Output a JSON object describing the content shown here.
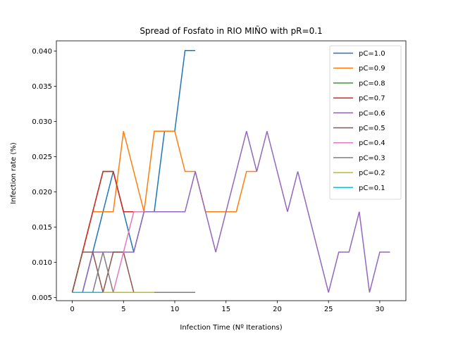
{
  "chart_data": {
    "type": "line",
    "title": "Spread of Fosfato in RIO MIÑO with pR=0.1",
    "xlabel": "Infection Time (Nº Iterations)",
    "ylabel": "Infection rate (%)",
    "xlim": [
      -1.55,
      32.55
    ],
    "ylim": [
      0.00455,
      0.04146
    ],
    "xticks": [
      0,
      5,
      10,
      15,
      20,
      25,
      30
    ],
    "yticks": [
      0.005,
      0.01,
      0.015,
      0.02,
      0.025,
      0.03,
      0.035,
      0.04
    ],
    "ytick_labels": [
      "0.005",
      "0.010",
      "0.015",
      "0.020",
      "0.025",
      "0.030",
      "0.035",
      "0.040"
    ],
    "legend_position": "top-right",
    "series": [
      {
        "name": "pC=1.0",
        "color": "#1f77b4",
        "x": [
          0,
          1,
          2,
          3,
          4,
          5,
          6,
          7,
          8,
          9,
          10,
          11,
          12
        ],
        "y": [
          0.00572,
          0.00572,
          0.01145,
          0.01718,
          0.0229,
          0.01718,
          0.01145,
          0.01718,
          0.01718,
          0.02863,
          0.02863,
          0.04008,
          0.04008
        ]
      },
      {
        "name": "pC=0.9",
        "color": "#ff7f0e",
        "x": [
          0,
          1,
          2,
          3,
          4,
          5,
          6,
          7,
          8,
          9,
          10,
          11,
          12,
          13,
          14,
          15,
          16,
          17,
          18
        ],
        "y": [
          0.00572,
          0.01145,
          0.01718,
          0.01718,
          0.01718,
          0.02863,
          0.0229,
          0.01718,
          0.02863,
          0.02863,
          0.02863,
          0.0229,
          0.0229,
          0.01718,
          0.01718,
          0.01718,
          0.01718,
          0.0229,
          0.0229
        ]
      },
      {
        "name": "pC=0.8",
        "color": "#2ca02c",
        "x": [
          0,
          1,
          2,
          3,
          4,
          5,
          6
        ],
        "y": [
          0.00572,
          0.01145,
          0.01718,
          0.0229,
          0.0229,
          0.01718,
          0.01718
        ]
      },
      {
        "name": "pC=0.7",
        "color": "#d62728",
        "x": [
          0,
          1,
          2,
          3,
          4,
          5,
          6
        ],
        "y": [
          0.00572,
          0.01145,
          0.01718,
          0.0229,
          0.0229,
          0.01718,
          0.01718
        ]
      },
      {
        "name": "pC=0.6",
        "color": "#9467bd",
        "x": [
          0,
          1,
          2,
          3,
          4,
          5,
          6,
          7,
          8,
          9,
          10,
          11,
          12,
          13,
          14,
          15,
          16,
          17,
          18,
          19,
          20,
          21,
          22,
          23,
          24,
          25,
          26,
          27,
          28,
          29,
          30,
          31
        ],
        "y": [
          0.00572,
          0.00572,
          0.01145,
          0.01145,
          0.01145,
          0.01145,
          0.01145,
          0.01718,
          0.01718,
          0.01718,
          0.01718,
          0.01718,
          0.0229,
          0.01718,
          0.01145,
          0.01718,
          0.0229,
          0.02863,
          0.0229,
          0.02863,
          0.0229,
          0.01718,
          0.0229,
          0.01718,
          0.01145,
          0.00572,
          0.01145,
          0.01145,
          0.01718,
          0.00572,
          0.01145,
          0.01145
        ]
      },
      {
        "name": "pC=0.5",
        "color": "#8c564b",
        "x": [
          0,
          1,
          2,
          3,
          4,
          5,
          6
        ],
        "y": [
          0.00572,
          0.01145,
          0.01145,
          0.00572,
          0.01145,
          0.01145,
          0.00572
        ]
      },
      {
        "name": "pC=0.4",
        "color": "#e377c2",
        "x": [
          0,
          1,
          2,
          3,
          4,
          5,
          6,
          7
        ],
        "y": [
          0.00572,
          0.00572,
          0.00572,
          0.00572,
          0.00572,
          0.01145,
          0.01718,
          0.01718
        ]
      },
      {
        "name": "pC=0.3",
        "color": "#7f7f7f",
        "x": [
          0,
          1,
          2,
          3,
          4,
          5,
          6,
          7,
          8,
          9,
          10,
          11,
          12
        ],
        "y": [
          0.00572,
          0.00572,
          0.00572,
          0.01145,
          0.00572,
          0.00572,
          0.00572,
          0.00572,
          0.00572,
          0.00572,
          0.00572,
          0.00572,
          0.00572
        ]
      },
      {
        "name": "pC=0.2",
        "color": "#bcbd22",
        "x": [
          0,
          1,
          2,
          3,
          4,
          5,
          6,
          7,
          8
        ],
        "y": [
          0.00572,
          0.00572,
          0.00572,
          0.00572,
          0.00572,
          0.00572,
          0.00572,
          0.00572,
          0.00572
        ]
      },
      {
        "name": "pC=0.1",
        "color": "#17becf",
        "x": [
          0,
          1,
          2,
          3
        ],
        "y": [
          0.00572,
          0.00572,
          0.00572,
          0.00572
        ]
      }
    ]
  }
}
